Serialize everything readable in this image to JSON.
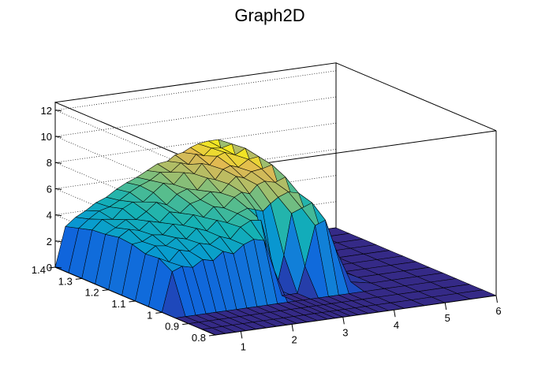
{
  "chart_data": {
    "type": "surface",
    "title": "Graph2D",
    "xlabel": "",
    "ylabel": "",
    "zlabel": "",
    "xlim": [
      0.5,
      6.0
    ],
    "ylim": [
      0.8,
      1.4
    ],
    "zlim": [
      0,
      12.6
    ],
    "x_ticks": [
      "1",
      "2",
      "3",
      "4",
      "5",
      "6"
    ],
    "y_ticks": [
      "0.8",
      "0.9",
      "1",
      "1.1",
      "1.2",
      "1.3",
      "1.4"
    ],
    "z_ticks": [
      "0",
      "2",
      "4",
      "6",
      "8",
      "10",
      "12"
    ],
    "grid": true,
    "colormap": "viridis-like",
    "x_grid": [
      0.5,
      0.7,
      0.9,
      1.1,
      1.3,
      1.5,
      1.7,
      1.9,
      2.1,
      2.3,
      2.5,
      2.7,
      2.85,
      3.0,
      3.15,
      3.3,
      3.5,
      3.7,
      3.9,
      4.2,
      4.6,
      5.0,
      5.5,
      6.0
    ],
    "y_grid": [
      0.8,
      0.85,
      0.9,
      0.95,
      1.0,
      1.05,
      1.1,
      1.15,
      1.2,
      1.25,
      1.3,
      1.35,
      1.4
    ],
    "z_rows": [
      [
        0,
        0,
        0,
        0,
        0,
        0,
        0,
        0,
        0,
        0,
        0,
        0,
        0,
        0,
        0,
        0,
        0,
        0,
        0,
        0,
        0,
        0,
        0,
        0
      ],
      [
        0,
        0,
        0,
        0,
        0,
        0,
        0,
        0,
        0,
        0,
        0,
        0,
        0,
        0,
        0,
        0,
        0,
        0,
        0,
        0,
        0,
        0,
        0,
        0
      ],
      [
        0,
        0,
        0,
        0,
        0,
        0,
        0,
        0,
        0,
        0,
        0,
        0,
        0,
        0,
        0,
        0,
        0,
        0,
        0,
        0,
        0,
        0,
        0,
        0
      ],
      [
        0,
        0,
        0,
        0,
        0,
        0,
        0,
        0,
        0,
        0,
        0,
        0,
        0,
        0,
        0,
        0,
        0,
        0,
        0,
        0,
        0,
        0,
        0,
        0
      ],
      [
        0,
        3.0,
        3.3,
        3.1,
        3.6,
        3.4,
        4.0,
        3.7,
        4.3,
        4.6,
        4.4,
        2.0,
        0,
        0,
        0,
        2.0,
        5.0,
        5.3,
        3.0,
        0.3,
        0,
        0,
        0,
        0
      ],
      [
        0,
        3.6,
        3.2,
        4.0,
        3.8,
        4.3,
        4.1,
        4.6,
        4.3,
        5.1,
        5.5,
        5.4,
        2.5,
        0,
        2.5,
        5.6,
        5.9,
        6.2,
        3.6,
        0.8,
        0,
        0,
        0,
        0
      ],
      [
        0,
        3.5,
        4.0,
        3.9,
        4.4,
        4.2,
        4.9,
        4.6,
        5.3,
        5.0,
        5.6,
        5.9,
        5.7,
        5.5,
        6.0,
        6.4,
        6.7,
        6.5,
        4.2,
        0.8,
        0,
        0,
        0,
        0
      ],
      [
        0,
        3.8,
        3.9,
        4.3,
        4.2,
        4.9,
        4.7,
        5.4,
        5.1,
        5.8,
        5.6,
        6.3,
        6.6,
        6.4,
        7.0,
        7.2,
        7.0,
        7.3,
        4.8,
        1.2,
        0,
        0,
        0,
        0
      ],
      [
        0,
        3.9,
        4.4,
        4.2,
        4.8,
        4.6,
        5.3,
        5.1,
        5.7,
        5.9,
        6.4,
        6.2,
        6.8,
        7.3,
        7.1,
        7.5,
        7.6,
        7.8,
        5.2,
        1.0,
        0,
        0,
        0,
        0
      ],
      [
        0,
        3.7,
        4.1,
        4.6,
        4.5,
        5.0,
        5.6,
        5.3,
        6.0,
        6.3,
        6.1,
        6.9,
        6.7,
        7.4,
        7.6,
        7.4,
        7.9,
        8.0,
        5.6,
        0.8,
        0,
        0,
        0,
        0
      ],
      [
        0,
        3.6,
        4.3,
        4.2,
        4.9,
        5.3,
        5.2,
        5.8,
        6.4,
        6.2,
        7.0,
        6.8,
        7.5,
        7.3,
        7.9,
        8.1,
        7.8,
        8.2,
        6.0,
        0.5,
        0,
        0,
        0,
        0
      ],
      [
        0,
        3.3,
        3.9,
        4.4,
        4.6,
        5.0,
        5.5,
        5.9,
        6.2,
        6.7,
        6.6,
        7.2,
        7.0,
        7.7,
        7.5,
        8.0,
        7.9,
        8.1,
        5.4,
        0.3,
        0,
        0,
        0,
        0
      ],
      [
        0,
        3.0,
        3.6,
        4.0,
        4.5,
        4.8,
        5.3,
        5.7,
        6.0,
        6.4,
        6.8,
        6.9,
        7.3,
        7.4,
        7.7,
        7.9,
        8.0,
        8.0,
        5.0,
        0.2,
        0,
        0,
        0,
        0
      ]
    ]
  }
}
